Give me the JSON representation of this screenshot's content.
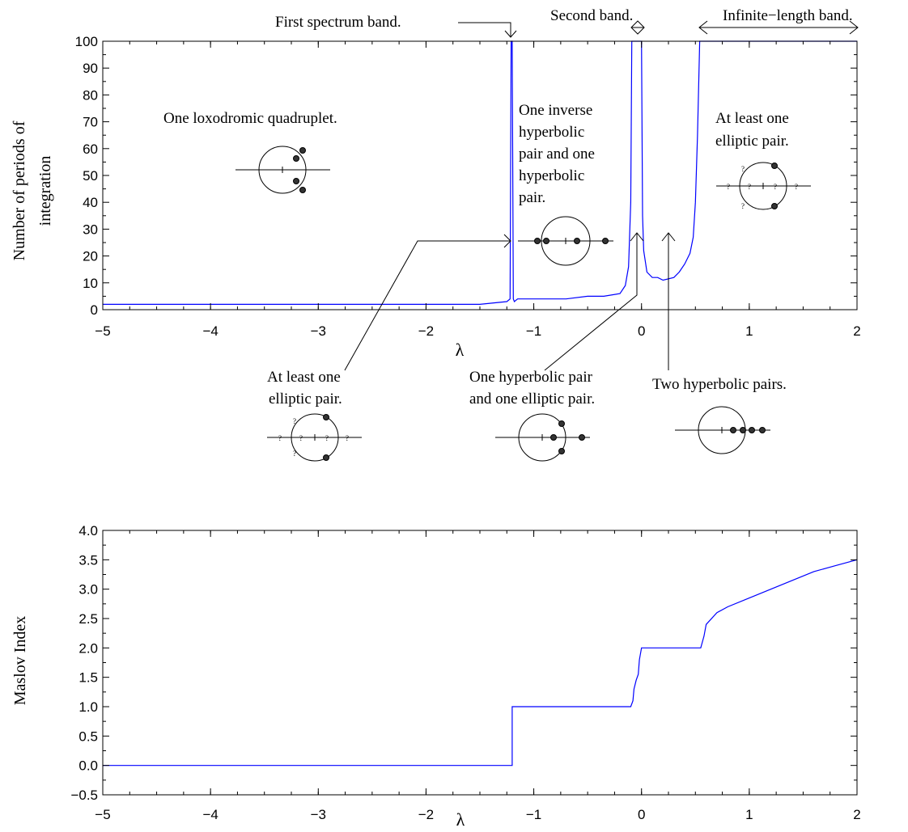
{
  "chart_data": [
    {
      "type": "line",
      "ylabel": [
        "Number of periods of",
        "integration"
      ],
      "xlabel": "λ",
      "xlim": [
        -5,
        2
      ],
      "ylim": [
        0,
        100
      ],
      "xticks": [
        "−5",
        "−4",
        "−3",
        "−2",
        "−1",
        "0",
        "1",
        "2"
      ],
      "yticks": [
        "0",
        "10",
        "20",
        "30",
        "40",
        "50",
        "60",
        "70",
        "80",
        "90",
        "100"
      ],
      "series_color": "#0000ff",
      "series": [
        {
          "x": [
            -5.0,
            -4.5,
            -4.0,
            -3.5,
            -3.0,
            -2.5,
            -2.0,
            -1.5,
            -1.25,
            -1.22,
            -1.21,
            -1.2,
            -1.19,
            -1.18,
            -1.15,
            -1.0,
            -0.7,
            -0.5,
            -0.35,
            -0.2,
            -0.15,
            -0.12,
            -0.1,
            -0.09,
            -0.08,
            -0.05,
            -0.02,
            -0.01,
            0.0,
            0.01,
            0.02,
            0.05,
            0.1,
            0.15,
            0.2,
            0.3,
            0.35,
            0.4,
            0.45,
            0.48,
            0.5,
            0.52,
            0.54,
            0.56,
            0.6,
            1.0,
            1.5,
            2.0
          ],
          "y": [
            2,
            2,
            2,
            2,
            2,
            2,
            2,
            2,
            3,
            4,
            100,
            100,
            4,
            3,
            4,
            4,
            4,
            5,
            5,
            6,
            9,
            16,
            40,
            100,
            100,
            100,
            100,
            100,
            100,
            35,
            22,
            14,
            12,
            12,
            11,
            12,
            14,
            17,
            21,
            27,
            40,
            65,
            100,
            100,
            100,
            100,
            100,
            100
          ]
        }
      ],
      "annotations": {
        "first_band": "First spectrum band.",
        "second_band": "Second band.",
        "infinite_band": "Infinite−length band.",
        "loxodromic": "One loxodromic quadruplet.",
        "inverse": [
          "One inverse",
          "hyperbolic",
          "pair and one",
          "hyperbolic",
          "pair."
        ],
        "elliptic_right": [
          "At least one",
          "elliptic pair."
        ],
        "elliptic_left": [
          "At least one",
          "elliptic pair."
        ],
        "hyp_ell": [
          "One hyperbolic pair",
          "and one elliptic pair."
        ],
        "two_hyp": "Two hyperbolic pairs.",
        "unknown_mark": "?"
      }
    },
    {
      "type": "line",
      "ylabel": "Maslov Index",
      "xlabel": "λ",
      "xlim": [
        -5,
        2
      ],
      "ylim": [
        -0.5,
        4.0
      ],
      "xticks": [
        "−5",
        "−4",
        "−3",
        "−2",
        "−1",
        "0",
        "1",
        "2"
      ],
      "yticks": [
        "−0.5",
        "0.0",
        "0.5",
        "1.0",
        "1.5",
        "2.0",
        "2.5",
        "3.0",
        "3.5",
        "4.0"
      ],
      "series_color": "#0000ff",
      "series": [
        {
          "x": [
            -5.0,
            -1.2,
            -1.2,
            -0.1,
            -0.08,
            -0.07,
            -0.05,
            -0.03,
            -0.02,
            0.0,
            0.55,
            0.58,
            0.6,
            0.7,
            0.8,
            1.0,
            1.2,
            1.4,
            1.6,
            1.8,
            2.0
          ],
          "y": [
            0.0,
            0.0,
            1.0,
            1.0,
            1.1,
            1.3,
            1.45,
            1.55,
            1.8,
            2.0,
            2.0,
            2.2,
            2.4,
            2.6,
            2.7,
            2.85,
            3.0,
            3.15,
            3.3,
            3.4,
            3.5
          ]
        }
      ]
    }
  ]
}
